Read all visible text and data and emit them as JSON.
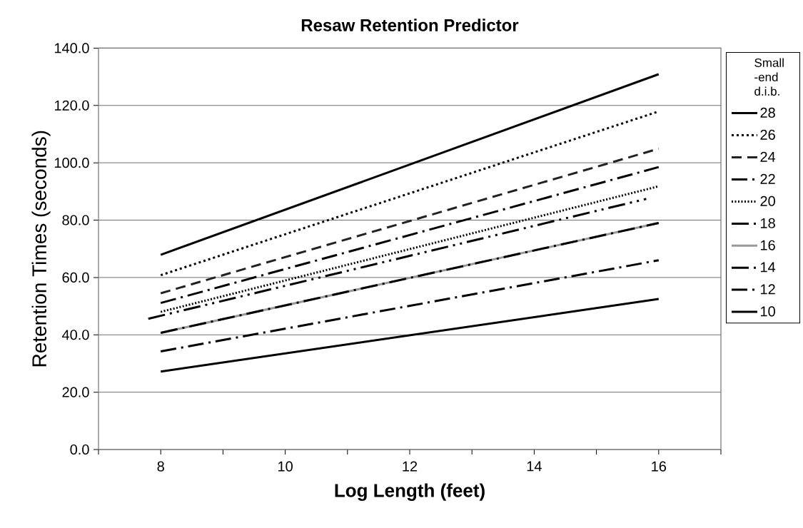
{
  "chart_data": {
    "type": "line",
    "title": "Resaw Retention Predictor",
    "xlabel": "Log Length (feet)",
    "ylabel": "Retention Times (seconds)",
    "legend_title": "Small -end d.i.b.",
    "xlim": [
      7,
      17
    ],
    "xticks": [
      {
        "value": 7,
        "label": null
      },
      8,
      {
        "value": 9,
        "label": null
      },
      10,
      {
        "value": 11,
        "label": null
      },
      12,
      {
        "value": 13,
        "label": null
      },
      14,
      {
        "value": 15,
        "label": null
      },
      16,
      {
        "value": 17,
        "label": null
      }
    ],
    "ylim": [
      0,
      140
    ],
    "yticks": [
      {
        "value": 0,
        "label": "0.0"
      },
      {
        "value": 20,
        "label": "20.0"
      },
      {
        "value": 40,
        "label": "40.0"
      },
      {
        "value": 60,
        "label": "60.0"
      },
      {
        "value": 80,
        "label": "80.0"
      },
      {
        "value": 100,
        "label": "100.0"
      },
      {
        "value": 120,
        "label": "120.0"
      },
      {
        "value": 140,
        "label": "140.0"
      }
    ],
    "grid": "y",
    "legend": "right",
    "marker": "none",
    "series": [
      {
        "name": "28",
        "color": "#000000",
        "line_style": "solid",
        "x": [
          8,
          16
        ],
        "values": [
          67.9,
          130.9
        ]
      },
      {
        "name": "26",
        "color": "#000000",
        "line_style": "dotted",
        "x": [
          8,
          16
        ],
        "values": [
          60.8,
          117.9
        ]
      },
      {
        "name": "24",
        "color": "#222222",
        "line_style": "dashed",
        "x": [
          8,
          16
        ],
        "values": [
          54.5,
          104.9
        ]
      },
      {
        "name": "22",
        "color": "#000000",
        "line_style": "longdashdot",
        "x": [
          8,
          16
        ],
        "values": [
          51.1,
          98.5
        ]
      },
      {
        "name": "20",
        "color": "#000000",
        "line_style": "densely dotted",
        "x": [
          8,
          16
        ],
        "values": [
          48.0,
          91.8
        ]
      },
      {
        "name": "18",
        "color": "#000000",
        "line_style": "dashdotdot",
        "x": [
          7.8,
          15.8
        ],
        "values": [
          45.6,
          87.4
        ]
      },
      {
        "name": "16",
        "color": "#999999",
        "line_style": "solid",
        "x": [
          8,
          16
        ],
        "values": [
          40.7,
          79.0
        ]
      },
      {
        "name": "14",
        "color": "#000000",
        "line_style": "dashdot",
        "x": [
          8,
          16
        ],
        "values": [
          40.7,
          79.0
        ]
      },
      {
        "name": "12",
        "color": "#000000",
        "line_style": "longdashdot",
        "x": [
          8,
          16
        ],
        "values": [
          34.2,
          66.0
        ]
      },
      {
        "name": "10",
        "color": "#000000",
        "line_style": "solid",
        "x": [
          8,
          16
        ],
        "values": [
          27.2,
          52.5
        ]
      }
    ]
  }
}
